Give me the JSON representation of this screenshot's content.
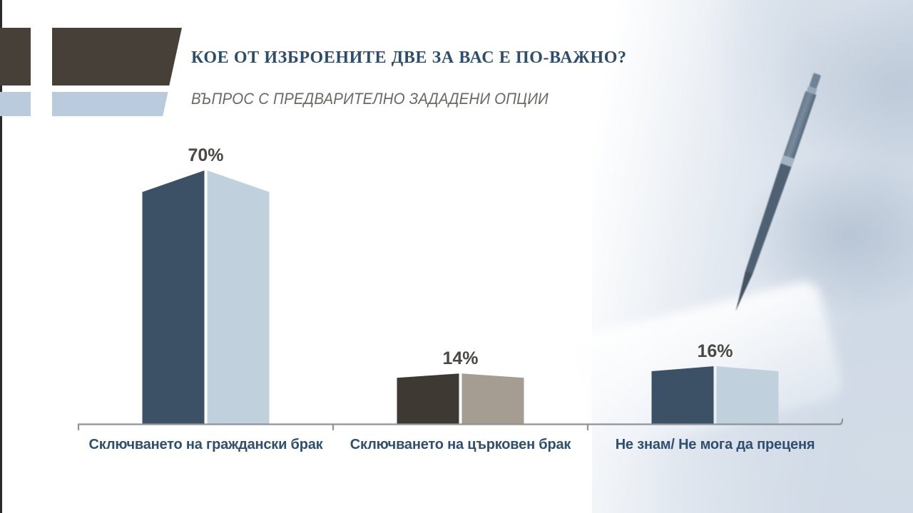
{
  "slide": {
    "title": "КОЕ ОТ ИЗБРОЕНИТЕ ДВЕ ЗА ВАС Е ПО-ВАЖНО?",
    "subtitle": "ВЪПРОС С ПРЕДВАРИТЕЛНО ЗАДАДЕНИ ОПЦИИ"
  },
  "chart_data": {
    "type": "bar",
    "title": "КОЕ ОТ ИЗБРОЕНИТЕ ДВЕ ЗА ВАС Е ПО-ВАЖНО?",
    "subtitle": "ВЪПРОС С ПРЕДВАРИТЕЛНО ЗАДАДЕНИ ОПЦИИ",
    "categories": [
      "Сключването на граждански брак",
      "Сключването на църковен брак",
      "Не знам/ Не мога да преценя"
    ],
    "values": [
      70,
      14,
      16
    ],
    "value_labels": [
      "70%",
      "14%",
      "16%"
    ],
    "xlabel": "",
    "ylabel": "",
    "ylim": [
      0,
      80
    ],
    "grid": false,
    "legend": "none",
    "bar_style": "split two-tone peaked 3d bars on a plain baseline",
    "bar_colors": [
      {
        "left": "#3d5166",
        "right": "#c0d0dd"
      },
      {
        "left": "#3e3933",
        "right": "#a69d92"
      },
      {
        "left": "#3d5166",
        "right": "#c0d0dd"
      }
    ]
  },
  "colors": {
    "title_text": "#2d4d6e",
    "subtitle_text": "#6b6761",
    "value_label_text": "#4b4742",
    "category_label_text": "#2e4f70",
    "axis_line": "#8c9399",
    "logo_dark": "#474038",
    "logo_light_blue": "#b9cbdc",
    "left_rule": "#2b2a28"
  }
}
